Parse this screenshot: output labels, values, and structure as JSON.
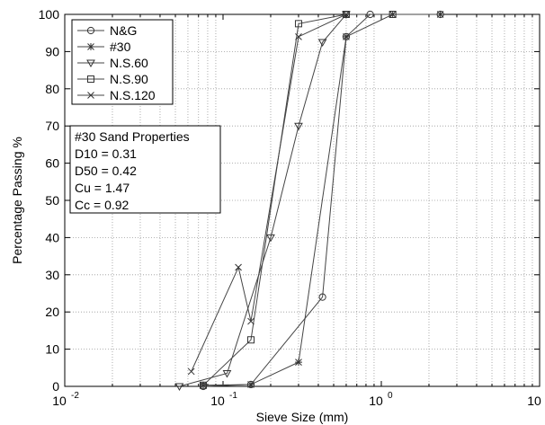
{
  "chart_data": {
    "type": "line",
    "title": "",
    "xlabel": "Sieve Size (mm)",
    "ylabel": "Percentage Passing %",
    "x_scale": "log",
    "xlim": [
      0.01,
      10
    ],
    "ylim": [
      0,
      100
    ],
    "grid": true,
    "legend_position": "top-left",
    "x_tick_labels": [
      {
        "base": "10",
        "exp": "-2"
      },
      {
        "base": "10",
        "exp": "-1"
      },
      {
        "base": "10",
        "exp": "0"
      },
      {
        "base": "10",
        "exp": "1"
      }
    ],
    "y_ticks": [
      0,
      10,
      20,
      30,
      40,
      50,
      60,
      70,
      80,
      90,
      100
    ],
    "series": [
      {
        "name": "N&G",
        "marker": "circle",
        "x": [
          0.075,
          0.15,
          0.425,
          0.6,
          0.85,
          2.36
        ],
        "y": [
          0,
          0.5,
          24,
          94,
          100,
          100
        ]
      },
      {
        "name": "#30",
        "marker": "star",
        "x": [
          0.075,
          0.15,
          0.3,
          0.6,
          1.18,
          2.36
        ],
        "y": [
          0.3,
          0.5,
          6.5,
          94,
          100,
          100
        ]
      },
      {
        "name": "N.S.60",
        "marker": "triangle-down",
        "x": [
          0.053,
          0.106,
          0.2,
          0.3,
          0.425,
          0.6
        ],
        "y": [
          0,
          3.5,
          40,
          70,
          92.5,
          100
        ]
      },
      {
        "name": "N.S.90",
        "marker": "square",
        "x": [
          0.075,
          0.15,
          0.3,
          0.6,
          1.18
        ],
        "y": [
          0.3,
          12.5,
          97.5,
          100,
          100
        ]
      },
      {
        "name": "N.S.120",
        "marker": "x",
        "x": [
          0.063,
          0.125,
          0.15,
          0.3,
          0.6
        ],
        "y": [
          4,
          32,
          17.5,
          94,
          100
        ]
      }
    ],
    "properties_box": {
      "title": "#30 Sand Properties",
      "lines": [
        "D10 = 0.31",
        "D50 = 0.42",
        "Cu = 1.47",
        "Cc = 0.92"
      ]
    }
  }
}
